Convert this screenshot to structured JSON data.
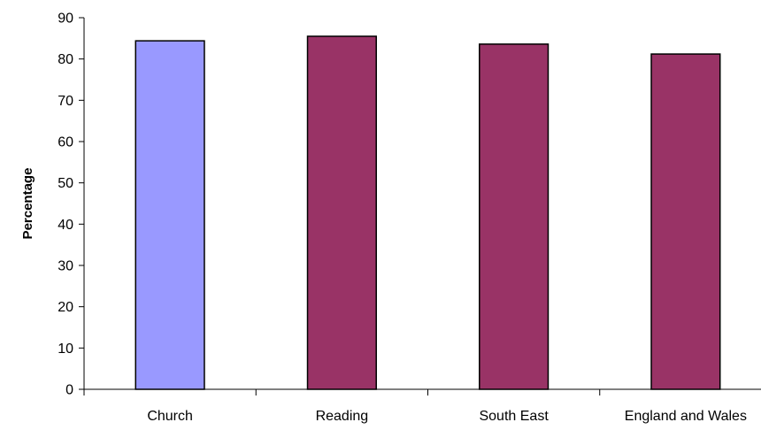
{
  "chart_data": {
    "type": "bar",
    "title": "",
    "xlabel": "",
    "ylabel": "Percentage",
    "categories": [
      "Church",
      "Reading",
      "South East",
      "England and Wales"
    ],
    "values": [
      84.4,
      85.5,
      83.6,
      81.2
    ],
    "bar_colors": [
      "#9999ff",
      "#993366",
      "#993366",
      "#993366"
    ],
    "bar_outline": "#000000",
    "ylim": [
      0,
      90
    ],
    "y_ticks": [
      0,
      10,
      20,
      30,
      40,
      50,
      60,
      70,
      80,
      90
    ],
    "grid": false,
    "legend": "none"
  }
}
